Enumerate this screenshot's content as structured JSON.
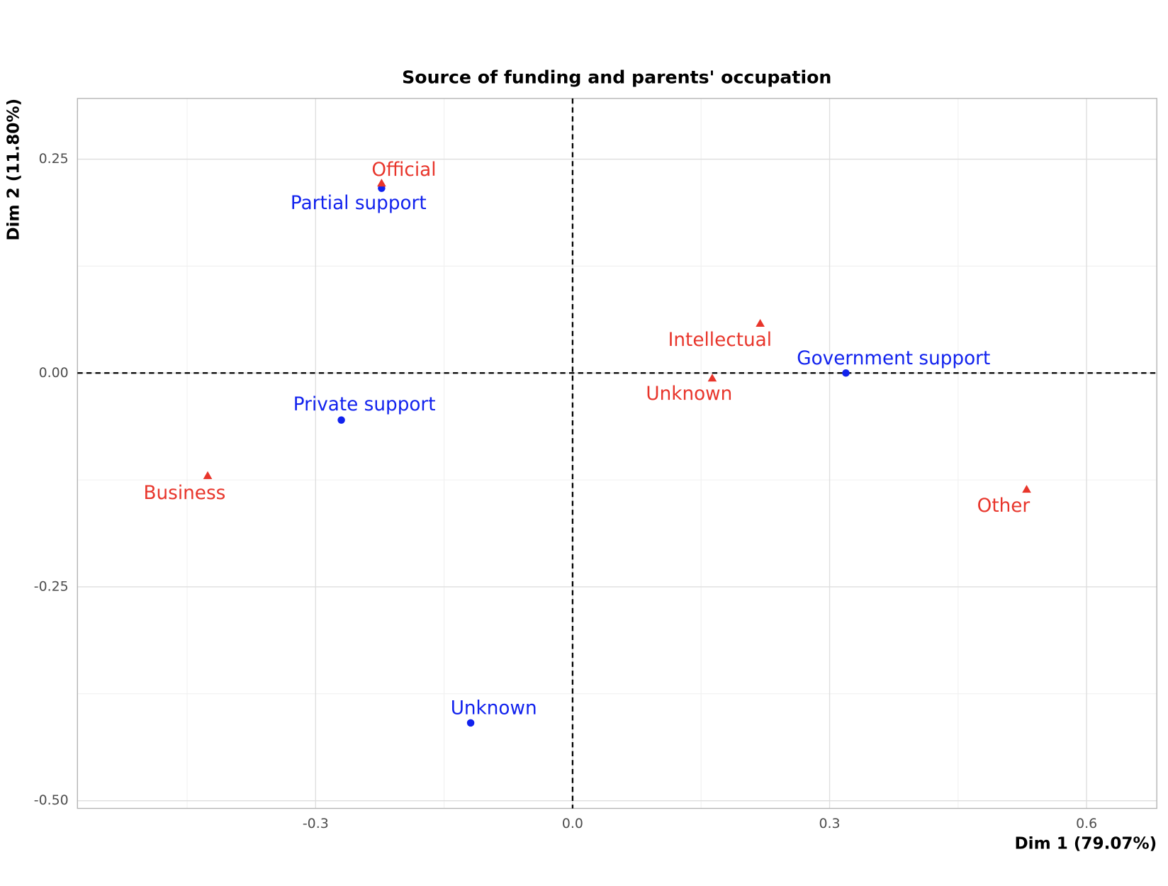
{
  "chart_data": {
    "type": "scatter",
    "title": "Source of funding and parents' occupation",
    "xlabel": "Dim 1 (79.07%)",
    "ylabel": "Dim 2 (11.80%)",
    "xlim": [
      -0.578,
      0.682
    ],
    "ylim": [
      -0.509,
      0.321
    ],
    "xticks": [
      -0.3,
      {
        "value": 0,
        "label": "0.0"
      },
      0.3,
      0.6
    ],
    "yticks": [
      {
        "value": -0.5,
        "label": "-0.50"
      },
      -0.25,
      {
        "value": 0,
        "label": "0.00"
      },
      0.25
    ],
    "grid": true,
    "series": [
      {
        "color": "#1122ee",
        "marker": "circle",
        "labels": [
          "Partial support",
          "Government support",
          "Private support",
          "Unknown"
        ],
        "x": [
          -0.223,
          0.319,
          -0.27,
          -0.119
        ],
        "values": [
          0.216,
          0.0,
          -0.055,
          -0.409
        ]
      },
      {
        "color": "#e8352b",
        "marker": "triangle",
        "labels": [
          "Official",
          "Intellectual",
          "Unknown",
          "Business",
          "Other"
        ],
        "x": [
          -0.223,
          0.219,
          0.163,
          -0.426,
          0.53
        ],
        "values": [
          0.222,
          0.058,
          -0.006,
          -0.12,
          -0.136
        ]
      }
    ]
  }
}
